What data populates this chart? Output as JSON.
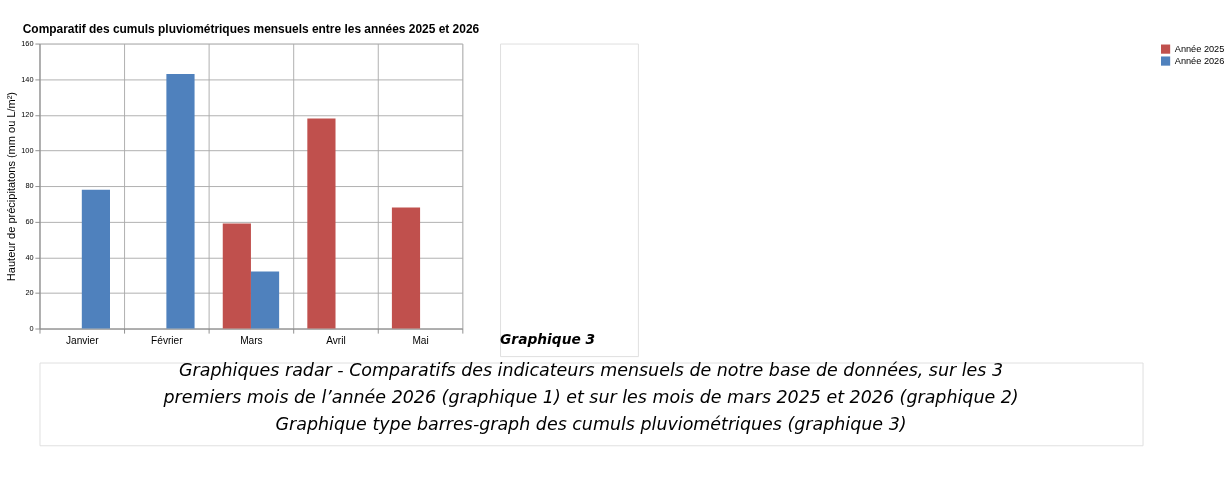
{
  "chart_data": {
    "type": "bar",
    "title": "Comparatif des cumuls pluviométriques mensuels entre les années 2025 et 2026",
    "ylabel": "Hauteur de précipitatons (mm ou L/m²)",
    "categories": [
      "Janvier",
      "Février",
      "Mars",
      "Avril",
      "Mai"
    ],
    "series": [
      {
        "name": "Année 2025",
        "color": "#c0504d",
        "values": [
          null,
          null,
          59,
          118,
          68
        ]
      },
      {
        "name": "Année 2026",
        "color": "#4f81bd",
        "values": [
          78,
          143,
          32,
          null,
          null
        ]
      }
    ],
    "ylim": [
      0,
      160
    ],
    "yticks": [
      0,
      20,
      40,
      60,
      80,
      100,
      120,
      140,
      160
    ],
    "grid": true,
    "legend": "right",
    "annotations": [
      "Graphique 3",
      "Graphiques radar - Comparatifs des indicateurs mensuels de notre base de données, sur les 3\npremiers mois de l’année 2026 (graphique 1) et sur les mois de mars 2025 et 2026 (graphique 2)\nGraphique type barres-graph des cumuls pluviométriques (graphique 3)"
    ]
  }
}
